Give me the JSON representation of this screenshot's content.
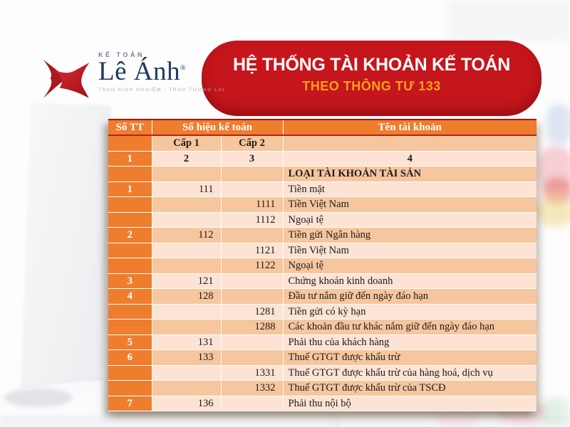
{
  "logo": {
    "brand_top": "KẾ TOÁN",
    "brand_name": "Lê Ánh",
    "registered_mark": "®",
    "tagline": "TRAO KINH NGHIỆM - TRAO TƯƠNG LAI"
  },
  "banner": {
    "title": "HỆ THỐNG TÀI KHOẢN KẾ TOÁN",
    "subtitle": "THEO THÔNG TƯ 133"
  },
  "colors": {
    "banner_bg": "#c4161c",
    "banner_subtitle": "#f9a01b",
    "header_orange": "#ee7d2e",
    "row_light": "#fce3d4",
    "row_dark": "#f6c69e",
    "logo_navy": "#1e3a60",
    "logo_red": "#d5232a"
  },
  "table": {
    "header": {
      "col_stt": "Số TT",
      "col_so_hieu": "Số hiệu kế toán",
      "col_ten": "Tên tài khoản",
      "sub_cap1": "Cấp 1",
      "sub_cap2": "Cấp 2"
    },
    "rows": [
      {
        "stt": "",
        "cap1": "Cấp 1",
        "cap2": "Cấp 2",
        "ten": "",
        "shade": "dark",
        "variant": "head2"
      },
      {
        "stt": "1",
        "cap1": "2",
        "cap2": "3",
        "ten": "4",
        "shade": "light",
        "variant": "index"
      },
      {
        "stt": "",
        "cap1": "",
        "cap2": "",
        "ten": "LOẠI TÀI KHOẢN TÀI SẢN",
        "shade": "dark",
        "variant": "section"
      },
      {
        "stt": "1",
        "cap1": "111",
        "cap2": "",
        "ten": "Tiền mặt",
        "shade": "light",
        "variant": "data"
      },
      {
        "stt": "",
        "cap1": "",
        "cap2": "1111",
        "ten": "Tiền Việt Nam",
        "shade": "dark",
        "variant": "data"
      },
      {
        "stt": "",
        "cap1": "",
        "cap2": "1112",
        "ten": "Ngoại tệ",
        "shade": "light",
        "variant": "data"
      },
      {
        "stt": "2",
        "cap1": "112",
        "cap2": "",
        "ten": "Tiền gửi Ngân hàng",
        "shade": "dark",
        "variant": "data"
      },
      {
        "stt": "",
        "cap1": "",
        "cap2": "1121",
        "ten": "Tiền Việt Nam",
        "shade": "light",
        "variant": "data"
      },
      {
        "stt": "",
        "cap1": "",
        "cap2": "1122",
        "ten": "Ngoại tệ",
        "shade": "dark",
        "variant": "data"
      },
      {
        "stt": "3",
        "cap1": "121",
        "cap2": "",
        "ten": "Chứng khoán kinh doanh",
        "shade": "light",
        "variant": "data"
      },
      {
        "stt": "4",
        "cap1": "128",
        "cap2": "",
        "ten": "Đầu tư nắm giữ đến ngày đáo hạn",
        "shade": "dark",
        "variant": "data"
      },
      {
        "stt": "",
        "cap1": "",
        "cap2": "1281",
        "ten": "Tiền gửi có kỳ hạn",
        "shade": "light",
        "variant": "data"
      },
      {
        "stt": "",
        "cap1": "",
        "cap2": "1288",
        "ten": "Các khoản đầu tư khác nắm giữ đến ngày đáo hạn",
        "shade": "dark",
        "variant": "data"
      },
      {
        "stt": "5",
        "cap1": "131",
        "cap2": "",
        "ten": "Phải thu của khách hàng",
        "shade": "light",
        "variant": "data"
      },
      {
        "stt": "6",
        "cap1": "133",
        "cap2": "",
        "ten": "Thuế GTGT được khấu trừ",
        "shade": "dark",
        "variant": "data"
      },
      {
        "stt": "",
        "cap1": "",
        "cap2": "1331",
        "ten": "Thuế GTGT được khấu trừ của hàng hoá, dịch vụ",
        "shade": "light",
        "variant": "data"
      },
      {
        "stt": "",
        "cap1": "",
        "cap2": "1332",
        "ten": "Thuế GTGT được khấu trừ của TSCĐ",
        "shade": "dark",
        "variant": "data"
      },
      {
        "stt": "7",
        "cap1": "136",
        "cap2": "",
        "ten": "Phải thu nội bộ",
        "shade": "light",
        "variant": "data"
      }
    ]
  }
}
